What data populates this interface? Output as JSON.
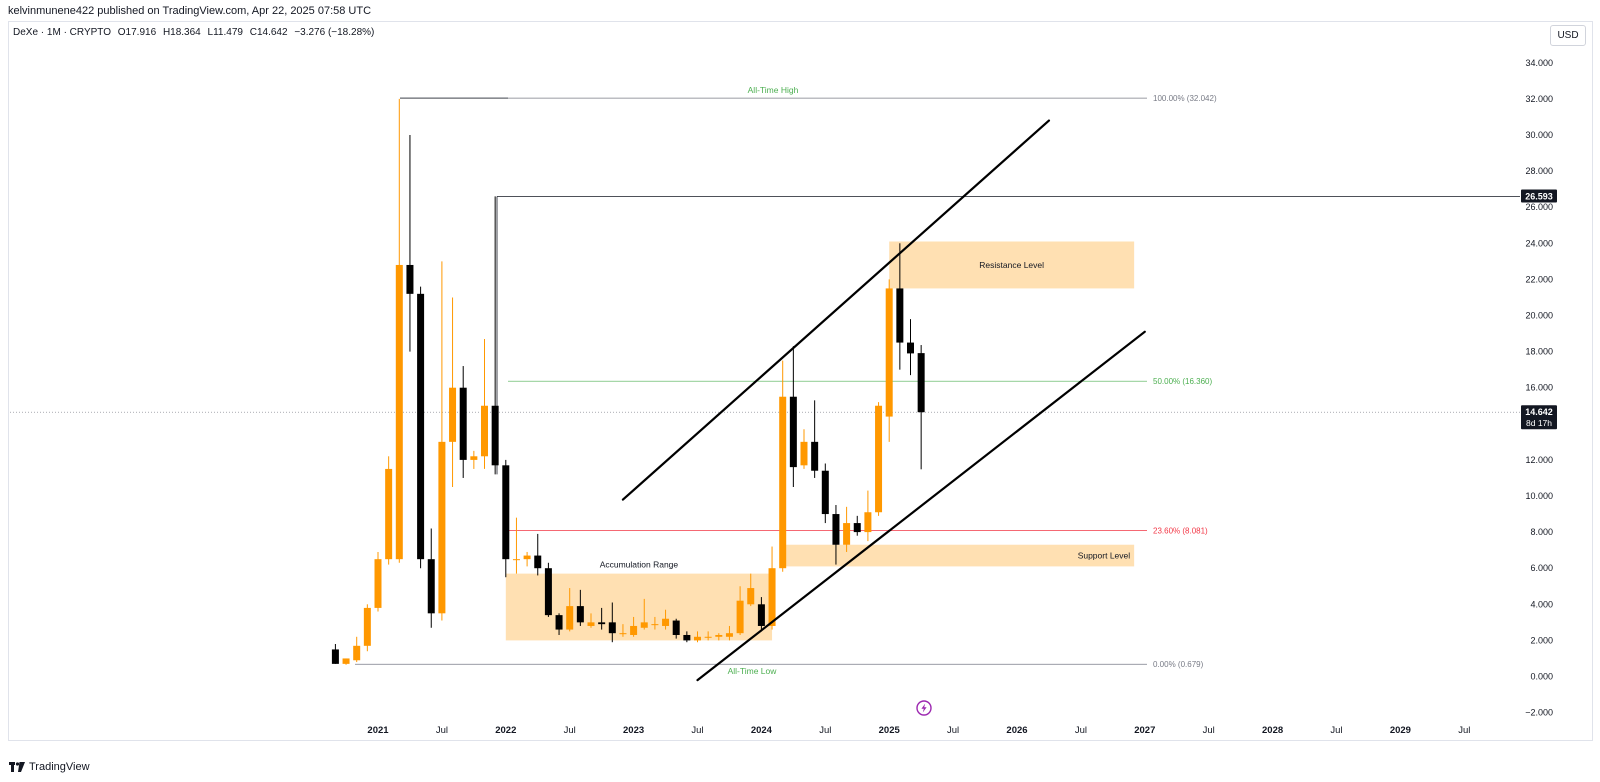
{
  "header": {
    "publisher_line": "kelvinmunene422 published on TradingView.com, Apr 22, 2025 07:58 UTC"
  },
  "legend": {
    "symbol": "DeXe · 1M · CRYPTO",
    "open": "O17.916",
    "high": "H18.364",
    "low": "L11.479",
    "close": "C14.642",
    "change": "−3.276 (−18.28%)"
  },
  "currency_button": "USD",
  "footer": {
    "brand": "TradingView"
  },
  "chart_data": {
    "type": "candlestick",
    "title": "",
    "interval": "1M",
    "ylim": [
      -2.5,
      35
    ],
    "y_ticks": [
      -2,
      0,
      2,
      4,
      6,
      8,
      10,
      12,
      14,
      16,
      18,
      20,
      22,
      24,
      26,
      28,
      30,
      32,
      34
    ],
    "y_tick_labels": [
      "−2.000",
      "0.000",
      "2.000",
      "4.000",
      "6.000",
      "8.000",
      "10.000",
      "12.000",
      "14.000",
      "16.000",
      "18.000",
      "20.000",
      "22.000",
      "24.000",
      "26.000",
      "28.000",
      "30.000",
      "32.000",
      "34.000"
    ],
    "x_ticks": [
      {
        "label": "2021",
        "date": "2021-01"
      },
      {
        "label": "Jul",
        "date": "2021-07"
      },
      {
        "label": "2022",
        "date": "2022-01"
      },
      {
        "label": "Jul",
        "date": "2022-07"
      },
      {
        "label": "2023",
        "date": "2023-01"
      },
      {
        "label": "Jul",
        "date": "2023-07"
      },
      {
        "label": "2024",
        "date": "2024-01"
      },
      {
        "label": "Jul",
        "date": "2024-07"
      },
      {
        "label": "2025",
        "date": "2025-01"
      },
      {
        "label": "Jul",
        "date": "2025-07"
      },
      {
        "label": "2026",
        "date": "2026-01"
      },
      {
        "label": "Jul",
        "date": "2026-07"
      },
      {
        "label": "2027",
        "date": "2027-01"
      },
      {
        "label": "Jul",
        "date": "2027-07"
      },
      {
        "label": "2028",
        "date": "2028-01"
      },
      {
        "label": "Jul",
        "date": "2028-07"
      },
      {
        "label": "2029",
        "date": "2029-01"
      },
      {
        "label": "Jul",
        "date": "2029-07"
      }
    ],
    "candles": [
      {
        "date": "2020-09",
        "open": 1.5,
        "high": 1.8,
        "low": 0.7,
        "close": 0.7
      },
      {
        "date": "2020-10",
        "open": 0.7,
        "high": 1.0,
        "low": 0.65,
        "close": 1.0
      },
      {
        "date": "2020-11",
        "open": 0.9,
        "high": 2.2,
        "low": 0.8,
        "close": 1.7
      },
      {
        "date": "2020-12",
        "open": 1.7,
        "high": 4.0,
        "low": 1.4,
        "close": 3.8
      },
      {
        "date": "2021-01",
        "open": 3.8,
        "high": 6.9,
        "low": 3.6,
        "close": 6.5
      },
      {
        "date": "2021-02",
        "open": 6.5,
        "high": 12.2,
        "low": 6.2,
        "close": 11.5
      },
      {
        "date": "2021-03",
        "open": 6.5,
        "high": 32.0,
        "low": 6.3,
        "close": 22.8
      },
      {
        "date": "2021-04",
        "open": 22.8,
        "high": 30.0,
        "low": 18.0,
        "close": 21.2
      },
      {
        "date": "2021-05",
        "open": 21.2,
        "high": 21.6,
        "low": 6.0,
        "close": 6.5
      },
      {
        "date": "2021-06",
        "open": 6.5,
        "high": 8.2,
        "low": 2.7,
        "close": 3.5
      },
      {
        "date": "2021-07",
        "open": 3.5,
        "high": 23.0,
        "low": 3.1,
        "close": 13.0
      },
      {
        "date": "2021-08",
        "open": 13.0,
        "high": 21.0,
        "low": 10.5,
        "close": 16.0
      },
      {
        "date": "2021-09",
        "open": 16.0,
        "high": 17.2,
        "low": 11.0,
        "close": 12.0
      },
      {
        "date": "2021-10",
        "open": 12.0,
        "high": 12.5,
        "low": 11.5,
        "close": 12.2
      },
      {
        "date": "2021-11",
        "open": 12.2,
        "high": 18.7,
        "low": 11.5,
        "close": 15.0
      },
      {
        "date": "2021-12",
        "open": 15.0,
        "high": 26.6,
        "low": 11.2,
        "close": 11.7
      },
      {
        "date": "2022-01",
        "open": 11.7,
        "high": 12.0,
        "low": 5.5,
        "close": 6.5
      },
      {
        "date": "2022-02",
        "open": 6.5,
        "high": 8.8,
        "low": 5.7,
        "close": 6.5
      },
      {
        "date": "2022-03",
        "open": 6.5,
        "high": 6.9,
        "low": 6.1,
        "close": 6.7
      },
      {
        "date": "2022-04",
        "open": 6.7,
        "high": 7.9,
        "low": 5.6,
        "close": 6.0
      },
      {
        "date": "2022-05",
        "open": 6.0,
        "high": 6.3,
        "low": 3.3,
        "close": 3.4
      },
      {
        "date": "2022-06",
        "open": 3.4,
        "high": 3.5,
        "low": 2.3,
        "close": 2.6
      },
      {
        "date": "2022-07",
        "open": 2.6,
        "high": 4.9,
        "low": 2.5,
        "close": 3.9
      },
      {
        "date": "2022-08",
        "open": 3.9,
        "high": 4.8,
        "low": 2.8,
        "close": 3.0
      },
      {
        "date": "2022-09",
        "open": 2.8,
        "high": 3.5,
        "low": 2.7,
        "close": 3.0
      },
      {
        "date": "2022-10",
        "open": 3.0,
        "high": 3.8,
        "low": 2.6,
        "close": 2.9
      },
      {
        "date": "2022-11",
        "open": 3.0,
        "high": 4.1,
        "low": 1.9,
        "close": 2.4
      },
      {
        "date": "2022-12",
        "open": 2.4,
        "high": 2.9,
        "low": 2.2,
        "close": 2.4
      },
      {
        "date": "2023-01",
        "open": 2.3,
        "high": 3.3,
        "low": 2.2,
        "close": 2.8
      },
      {
        "date": "2023-02",
        "open": 2.7,
        "high": 4.3,
        "low": 2.6,
        "close": 3.0
      },
      {
        "date": "2023-03",
        "open": 2.9,
        "high": 3.3,
        "low": 2.6,
        "close": 2.9
      },
      {
        "date": "2023-04",
        "open": 2.8,
        "high": 3.7,
        "low": 2.6,
        "close": 3.2
      },
      {
        "date": "2023-05",
        "open": 3.1,
        "high": 3.2,
        "low": 2.1,
        "close": 2.3
      },
      {
        "date": "2023-06",
        "open": 2.3,
        "high": 2.5,
        "low": 1.9,
        "close": 2.0
      },
      {
        "date": "2023-07",
        "open": 2.0,
        "high": 2.5,
        "low": 1.9,
        "close": 2.2
      },
      {
        "date": "2023-08",
        "open": 2.2,
        "high": 2.5,
        "low": 2.0,
        "close": 2.2
      },
      {
        "date": "2023-09",
        "open": 2.2,
        "high": 2.4,
        "low": 2.0,
        "close": 2.3
      },
      {
        "date": "2023-10",
        "open": 2.2,
        "high": 2.8,
        "low": 2.0,
        "close": 2.4
      },
      {
        "date": "2023-11",
        "open": 2.4,
        "high": 5.0,
        "low": 2.3,
        "close": 4.2
      },
      {
        "date": "2023-12",
        "open": 4.0,
        "high": 5.7,
        "low": 3.9,
        "close": 4.9
      },
      {
        "date": "2024-01",
        "open": 4.0,
        "high": 4.4,
        "low": 2.5,
        "close": 2.8
      },
      {
        "date": "2024-02",
        "open": 2.8,
        "high": 7.2,
        "low": 2.6,
        "close": 6.0
      },
      {
        "date": "2024-03",
        "open": 6.0,
        "high": 17.5,
        "low": 5.8,
        "close": 15.5
      },
      {
        "date": "2024-04",
        "open": 15.5,
        "high": 18.3,
        "low": 10.5,
        "close": 11.6
      },
      {
        "date": "2024-05",
        "open": 11.7,
        "high": 13.7,
        "low": 11.5,
        "close": 13.0
      },
      {
        "date": "2024-06",
        "open": 13.0,
        "high": 15.3,
        "low": 11.0,
        "close": 11.4
      },
      {
        "date": "2024-07",
        "open": 11.4,
        "high": 11.8,
        "low": 8.5,
        "close": 9.0
      },
      {
        "date": "2024-08",
        "open": 9.0,
        "high": 9.5,
        "low": 6.2,
        "close": 7.3
      },
      {
        "date": "2024-09",
        "open": 7.3,
        "high": 9.4,
        "low": 6.9,
        "close": 8.5
      },
      {
        "date": "2024-10",
        "open": 8.5,
        "high": 8.9,
        "low": 7.8,
        "close": 8.0
      },
      {
        "date": "2024-11",
        "open": 8.0,
        "high": 10.3,
        "low": 7.5,
        "close": 9.1
      },
      {
        "date": "2024-12",
        "open": 9.1,
        "high": 15.2,
        "low": 8.9,
        "close": 15.0
      },
      {
        "date": "2025-01",
        "open": 14.4,
        "high": 22.0,
        "low": 13.0,
        "close": 21.5
      },
      {
        "date": "2025-02",
        "open": 21.5,
        "high": 24.0,
        "low": 17.0,
        "close": 18.5
      },
      {
        "date": "2025-03",
        "open": 18.5,
        "high": 19.8,
        "low": 16.7,
        "close": 17.9
      },
      {
        "date": "2025-04",
        "open": 17.916,
        "high": 18.364,
        "low": 11.479,
        "close": 14.642
      }
    ],
    "zones": [
      {
        "label": "Accumulation Range",
        "from": "2022-01",
        "to": "2024-02",
        "low": 2.0,
        "high": 5.7
      },
      {
        "label": "Resistance Level",
        "from": "2025-01",
        "to": "2026-12",
        "low": 21.5,
        "high": 24.1
      },
      {
        "label": "Support Level",
        "from": "2024-03",
        "to": "2026-12",
        "low": 6.1,
        "high": 7.3
      }
    ],
    "annotations": {
      "ath": {
        "label": "All-Time High",
        "value": 32.042
      },
      "atl": {
        "label": "All-Time Low",
        "value": 0.679
      },
      "high_26": {
        "value": 26.593
      }
    },
    "fibonacci": [
      {
        "label": "100.00% (32.042)",
        "value": 32.042,
        "color": "#787b86"
      },
      {
        "label": "50.00% (16.360)",
        "value": 16.36,
        "color": "#4caf50"
      },
      {
        "label": "23.60% (8.081)",
        "value": 8.081,
        "color": "#f23645"
      },
      {
        "label": "0.00% (0.679)",
        "value": 0.679,
        "color": "#787b86"
      }
    ],
    "channel_lines": [
      {
        "from": {
          "date": "2022-12",
          "value": 9.8
        },
        "to": {
          "date": "2026-04",
          "value": 30.8
        }
      },
      {
        "from": {
          "date": "2023-07",
          "value": -0.2
        },
        "to": {
          "date": "2027-01",
          "value": 19.1
        }
      }
    ],
    "price_badges": [
      {
        "value": 26.593,
        "label": "26.593"
      },
      {
        "value": 14.642,
        "label": "14.642",
        "sublabel": "8d 17h"
      }
    ],
    "colors": {
      "up": "#ff9800",
      "down": "#000000",
      "zone": "#ffe0b2",
      "accent": "#9c27b0"
    }
  }
}
